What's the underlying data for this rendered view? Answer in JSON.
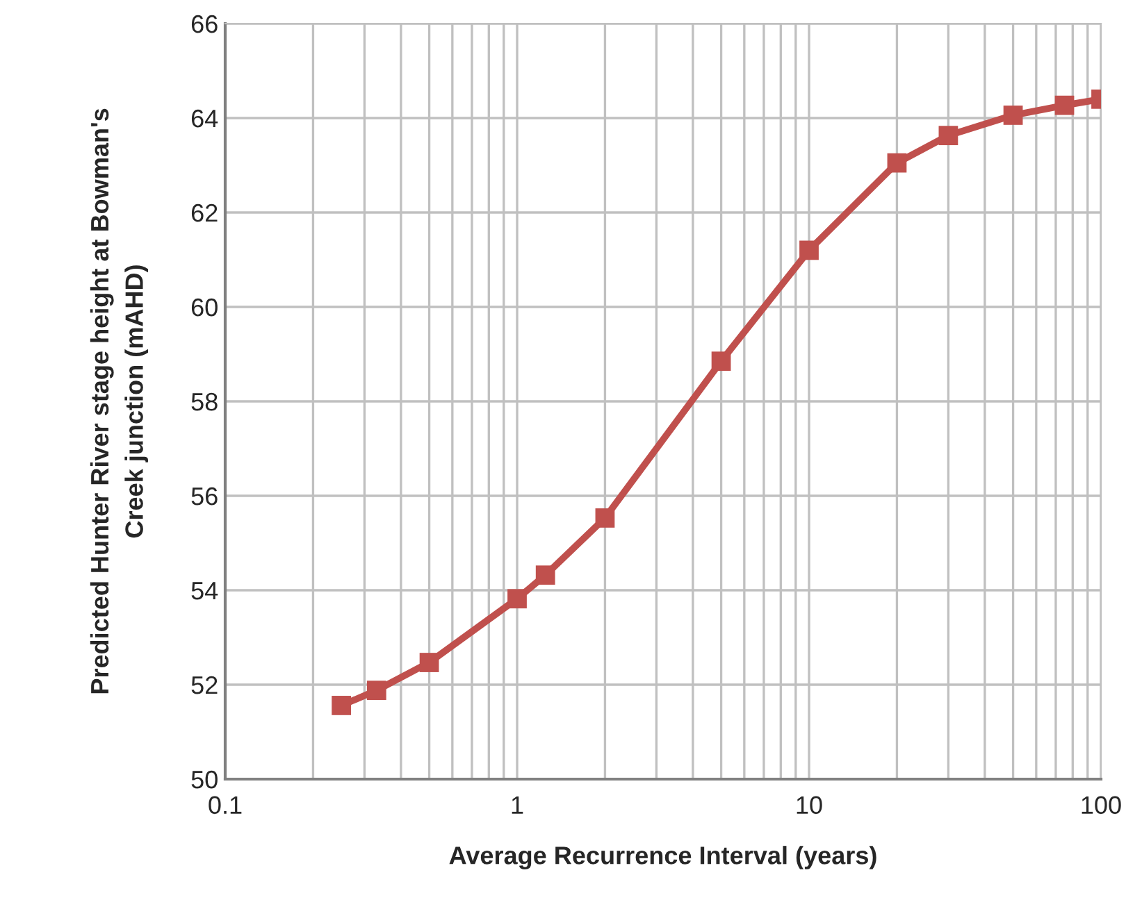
{
  "chart_data": {
    "type": "line",
    "xlabel": "Average Recurrence Interval (years)",
    "ylabel": "Predicted Hunter River stage height at Bowman's\nCreek junction (mAHD)",
    "x": [
      0.25,
      0.33,
      0.5,
      1,
      1.25,
      2,
      5,
      10,
      20,
      30,
      50,
      75,
      100
    ],
    "series": [
      {
        "color": "#c0504d",
        "values": [
          51.56,
          51.88,
          52.47,
          53.82,
          54.32,
          55.53,
          58.85,
          61.2,
          63.05,
          63.63,
          64.06,
          64.27,
          64.4
        ]
      }
    ],
    "log": "x",
    "xlim": [
      0.1,
      100
    ],
    "xticks": [
      0.1,
      1,
      10,
      100
    ],
    "ylim": [
      50,
      66
    ],
    "yticks": [
      50,
      52,
      54,
      56,
      58,
      60,
      62,
      64,
      66
    ],
    "grid": true,
    "marker": "square",
    "line_style": "solid",
    "legend": false
  }
}
